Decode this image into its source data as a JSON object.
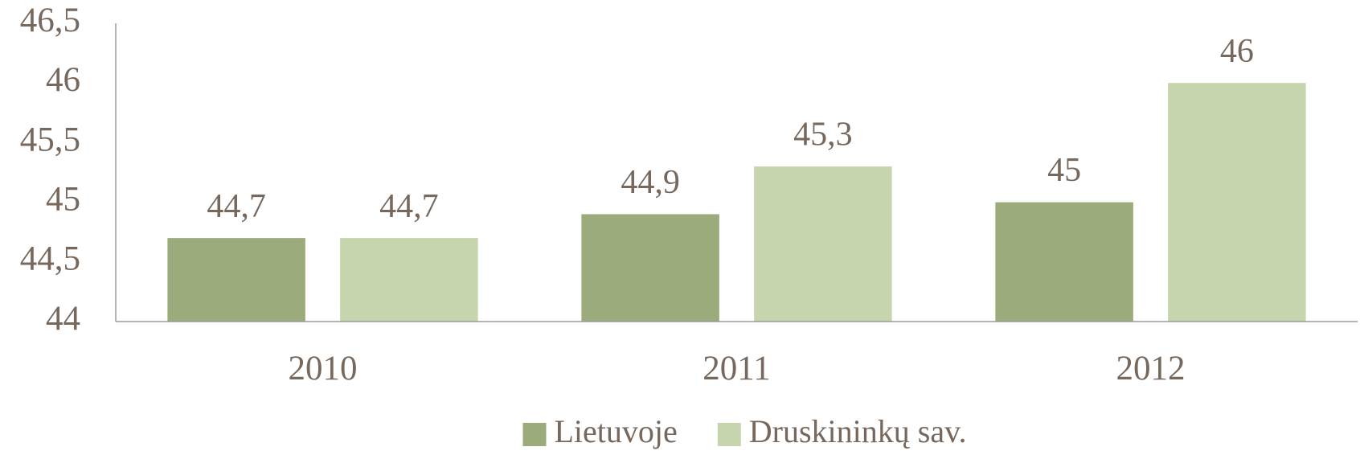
{
  "chart_data": {
    "type": "bar",
    "categories": [
      "2010",
      "2011",
      "2012"
    ],
    "series": [
      {
        "name": "Lietuvoje",
        "color": "#9bab7b",
        "values": [
          44.7,
          44.9,
          45
        ],
        "value_labels": [
          "44,7",
          "44,9",
          "45"
        ]
      },
      {
        "name": "Druskininkų sav.",
        "color": "#c6d5ad",
        "values": [
          44.7,
          45.3,
          46
        ],
        "value_labels": [
          "44,7",
          "45,3",
          "46"
        ]
      }
    ],
    "ylim": [
      44,
      46.5
    ],
    "yticks": [
      44,
      {
        "value": 44.5,
        "label": "44,5"
      },
      45,
      {
        "value": 45.5,
        "label": "45,5"
      },
      46,
      {
        "value": 46.5,
        "label": "46,5"
      }
    ],
    "grid": false,
    "legend": "bottom"
  }
}
